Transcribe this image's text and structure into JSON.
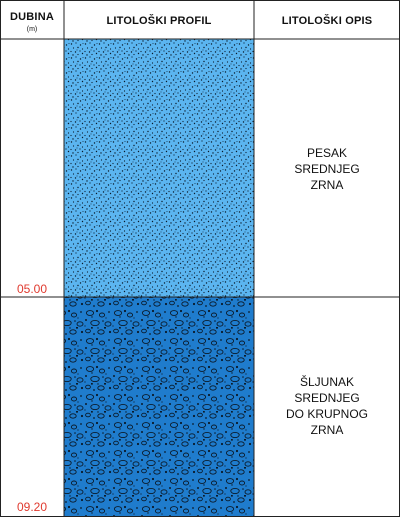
{
  "header": {
    "depth_title": "DUBINA",
    "depth_unit": "(m)",
    "profile_title": "LITOLOŠKI PROFIL",
    "description_title": "LITOLOŠKI OPIS"
  },
  "layers": [
    {
      "depth": "05.00",
      "description_lines": [
        "PESAK",
        "SREDNJEG",
        "ZRNA"
      ],
      "pattern": "sand-fine-dots",
      "color": "#5bb5f0"
    },
    {
      "depth": "09.20",
      "description_lines": [
        "ŠLJUNAK",
        "SREDNJEG",
        "DO KRUPNOG",
        "ZRNA"
      ],
      "pattern": "gravel-pebbles",
      "color": "#1f7ccd"
    }
  ],
  "colors": {
    "grid_line": "#222222",
    "depth_text": "#e03a2f"
  }
}
